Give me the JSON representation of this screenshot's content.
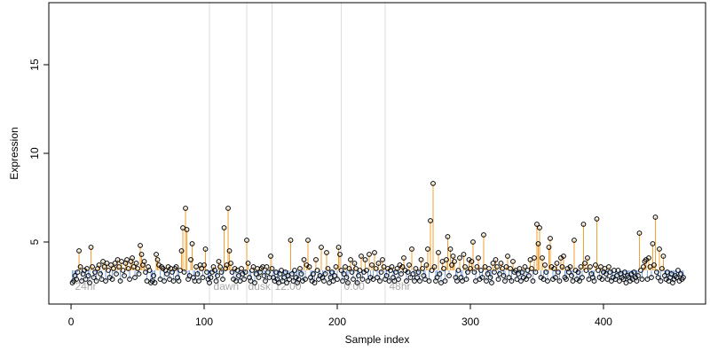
{
  "chart_data": {
    "type": "scatter",
    "x_label": "Sample index",
    "y_label": "Expression",
    "xlim": [
      -16.7,
      476.7
    ],
    "ylim": [
      1.5,
      18.5
    ],
    "xticks": [
      0,
      100,
      200,
      300,
      400
    ],
    "yticks": [
      5,
      10,
      15
    ],
    "baseline": 3.4,
    "up_color": "#f0a030",
    "down_color": "#7fa6e0",
    "point_color": "#000000",
    "vlines": [
      104,
      132,
      151,
      203,
      236
    ],
    "annotations": [
      {
        "text": "24hr",
        "x": 3,
        "y": 2.3
      },
      {
        "text": "dawn",
        "x": 107,
        "y": 2.3
      },
      {
        "text": "dusk",
        "x": 133,
        "y": 2.3
      },
      {
        "text": "12:00",
        "x": 153,
        "y": 2.3
      },
      {
        "text": "0:00",
        "x": 205,
        "y": 2.3
      },
      {
        "text": "48hr",
        "x": 239,
        "y": 2.3
      }
    ],
    "values": [
      2.7,
      2.8,
      3.1,
      2.9,
      3.3,
      4.5,
      3.6,
      2.8,
      3.2,
      3.4,
      2.9,
      3.5,
      3.1,
      2.7,
      4.7,
      3.6,
      3.0,
      3.3,
      2.8,
      3.5,
      3.7,
      3.2,
      2.9,
      3.9,
      3.6,
      2.8,
      3.8,
      3.4,
      3.0,
      3.7,
      2.9,
      3.5,
      3.8,
      3.2,
      4.0,
      3.6,
      2.8,
      3.9,
      3.4,
      3.1,
      3.8,
      4.0,
      3.5,
      2.9,
      3.9,
      4.1,
      3.6,
      3.0,
      3.8,
      3.5,
      3.2,
      4.8,
      4.3,
      3.7,
      3.9,
      3.3,
      2.8,
      3.6,
      3.4,
      2.7,
      2.8,
      3.1,
      2.7,
      4.3,
      4.0,
      3.7,
      2.9,
      3.6,
      3.5,
      2.8,
      3.4,
      3.2,
      3.6,
      2.9,
      3.5,
      3.3,
      2.8,
      3.5,
      3.6,
      3.0,
      2.8,
      3.4,
      4.5,
      5.8,
      3.3,
      6.9,
      5.7,
      2.9,
      3.1,
      4.0,
      4.9,
      3.0,
      2.8,
      3.6,
      3.2,
      2.8,
      3.7,
      3.5,
      3.0,
      3.7,
      4.6,
      3.3,
      2.9,
      2.7,
      3.0,
      3.3,
      3.6,
      3.4,
      2.8,
      3.1,
      3.9,
      3.6,
      3.3,
      2.9,
      5.8,
      3.5,
      3.7,
      6.9,
      4.5,
      3.8,
      3.3,
      2.9,
      3.5,
      2.8,
      3.4,
      3.1,
      2.8,
      3.5,
      3.2,
      2.9,
      3.3,
      5.1,
      3.8,
      3.0,
      2.8,
      3.4,
      3.6,
      2.7,
      3.2,
      3.5,
      3.0,
      3.3,
      3.5,
      3.6,
      3.1,
      2.8,
      3.6,
      3.3,
      3.0,
      4.2,
      3.5,
      3.0,
      2.8,
      3.3,
      2.9,
      2.7,
      3.2,
      3.4,
      2.8,
      3.0,
      3.3,
      2.7,
      3.1,
      2.9,
      5.1,
      3.2,
      2.8,
      3.4,
      3.0,
      2.7,
      2.9,
      3.5,
      3.2,
      2.8,
      4.0,
      2.9,
      3.7,
      5.1,
      3.6,
      3.0,
      2.8,
      3.2,
      2.7,
      4.0,
      3.4,
      2.9,
      3.1,
      4.7,
      3.0,
      2.8,
      3.2,
      4.4,
      3.5,
      2.7,
      3.0,
      3.3,
      2.8,
      3.1,
      3.6,
      2.9,
      4.7,
      4.3,
      3.4,
      2.8,
      3.2,
      3.6,
      3.0,
      2.7,
      3.5,
      4.0,
      3.3,
      2.9,
      3.8,
      3.5,
      2.7,
      3.1,
      3.4,
      4.2,
      2.9,
      3.3,
      4.0,
      3.4,
      2.8,
      4.3,
      3.0,
      3.7,
      2.9,
      4.4,
      3.5,
      3.0,
      3.8,
      2.8,
      3.3,
      4.0,
      3.6,
      2.9,
      3.1,
      3.5,
      2.8,
      3.4,
      3.6,
      3.0,
      2.8,
      3.3,
      3.5,
      2.9,
      3.7,
      3.2,
      3.6,
      4.1,
      3.4,
      2.8,
      3.3,
      3.7,
      3.0,
      4.6,
      3.2,
      2.8,
      3.5,
      3.0,
      3.3,
      2.8,
      4.0,
      3.5,
      3.1,
      2.9,
      3.7,
      4.6,
      2.8,
      6.2,
      3.4,
      8.3,
      3.6,
      2.8,
      3.0,
      4.4,
      3.2,
      2.7,
      3.9,
      3.5,
      2.8,
      4.0,
      5.3,
      3.1,
      4.6,
      3.7,
      4.2,
      3.9,
      3.0,
      2.8,
      3.4,
      4.1,
      3.0,
      2.8,
      4.3,
      3.6,
      2.9,
      3.3,
      4.0,
      3.5,
      3.9,
      5.0,
      3.3,
      2.8,
      3.6,
      4.1,
      2.9,
      3.4,
      3.0,
      5.4,
      3.6,
      2.8,
      3.2,
      3.5,
      3.0,
      2.7,
      3.8,
      3.3,
      4.0,
      3.6,
      2.9,
      3.2,
      3.8,
      3.5,
      3.1,
      2.8,
      3.6,
      4.2,
      3.0,
      3.5,
      2.8,
      3.9,
      3.3,
      3.4,
      2.9,
      3.2,
      3.5,
      2.8,
      3.3,
      3.0,
      3.6,
      2.9,
      3.4,
      3.1,
      4.0,
      3.5,
      2.8,
      4.1,
      3.3,
      6.0,
      4.9,
      5.8,
      3.0,
      4.1,
      2.9,
      3.7,
      3.3,
      2.8,
      4.7,
      5.2,
      3.6,
      2.9,
      3.5,
      3.0,
      3.8,
      3.3,
      2.8,
      4.1,
      3.6,
      4.2,
      3.0,
      2.9,
      3.5,
      3.3,
      3.6,
      3.1,
      2.8,
      5.1,
      3.4,
      2.9,
      3.3,
      2.8,
      3.6,
      3.0,
      6.0,
      3.8,
      3.4,
      4.1,
      2.9,
      3.6,
      3.2,
      3.0,
      2.8,
      3.7,
      6.3,
      3.4,
      3.0,
      3.6,
      2.9,
      3.3,
      3.5,
      3.2,
      2.9,
      3.6,
      3.3,
      2.8,
      3.0,
      3.4,
      2.9,
      3.1,
      3.4,
      2.8,
      3.2,
      3.0,
      2.9,
      3.3,
      2.7,
      3.1,
      3.0,
      2.8,
      3.2,
      2.9,
      3.3,
      3.0,
      2.8,
      3.1,
      5.5,
      3.4,
      2.9,
      3.6,
      3.9,
      4.0,
      2.9,
      4.1,
      3.6,
      3.0,
      4.9,
      3.7,
      6.4,
      3.3,
      3.0,
      4.6,
      2.8,
      3.5,
      4.2,
      3.1,
      2.9,
      3.3,
      2.8,
      3.0,
      3.2,
      2.7,
      2.9,
      3.1,
      3.0,
      3.4,
      2.8,
      3.2,
      2.9,
      3.0
    ]
  }
}
